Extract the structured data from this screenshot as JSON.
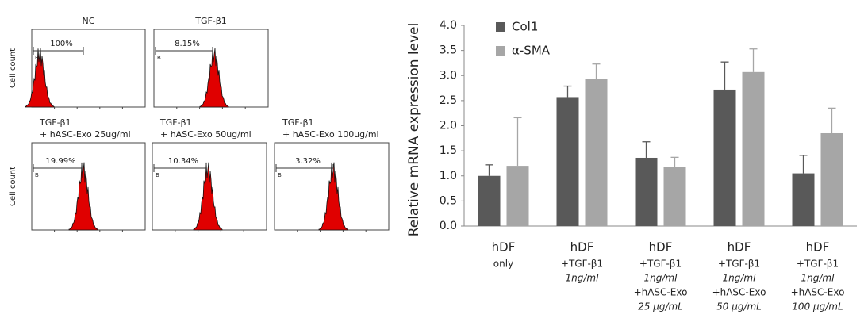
{
  "flow_panels": [
    {
      "title": [
        "NC"
      ],
      "percent": "100%",
      "gate_label": "B",
      "ylabel": "Cell count"
    },
    {
      "title": [
        "TGF-β1"
      ],
      "percent": "8.15%",
      "gate_label": "B"
    },
    {
      "title": [
        "TGF-β1",
        "+ hASC-Exo 25ug/ml"
      ],
      "percent": "19.99%",
      "gate_label": "B",
      "ylabel": "Cell count"
    },
    {
      "title": [
        "TGF-β1",
        "+ hASC-Exo 50ug/ml"
      ],
      "percent": "10.34%",
      "gate_label": "B"
    },
    {
      "title": [
        "TGF-β1",
        "+ hASC-Exo 100ug/ml"
      ],
      "percent": "3.32%",
      "gate_label": "B"
    }
  ],
  "chart_data": {
    "type": "bar",
    "ylabel": "Relative mRNA expression level",
    "categories": [
      [
        "hDF",
        "only"
      ],
      [
        "hDF",
        "+TGF-β1",
        "1ng/ml"
      ],
      [
        "hDF",
        "+TGF-β1",
        "1ng/ml",
        "+hASC-Exo",
        "25 µg/mL"
      ],
      [
        "hDF",
        "+TGF-β1",
        "1ng/ml",
        "+hASC-Exo",
        "50 µg/mL"
      ],
      [
        "hDF",
        "+TGF-β1",
        "1ng/ml",
        "+hASC-Exo",
        "100 µg/mL"
      ]
    ],
    "series": [
      {
        "name": "Col1",
        "color": "#595959",
        "values": [
          1.0,
          2.57,
          1.36,
          2.72,
          1.05
        ],
        "errors": [
          0.22,
          0.22,
          0.32,
          0.55,
          0.36
        ]
      },
      {
        "name": "α-SMA",
        "color": "#a6a6a6",
        "values": [
          1.2,
          2.93,
          1.17,
          3.07,
          1.85
        ],
        "errors": [
          0.96,
          0.3,
          0.2,
          0.46,
          0.5
        ]
      }
    ],
    "ylim": [
      0,
      4
    ],
    "yticks": [
      {
        "value": 0,
        "label": "0.0"
      },
      {
        "value": 0.5,
        "label": "0.5"
      },
      {
        "value": 1,
        "label": "1.0"
      },
      {
        "value": 1.5,
        "label": "1.5"
      },
      {
        "value": 2,
        "label": "2.0"
      },
      {
        "value": 2.5,
        "label": "2.5"
      },
      {
        "value": 3,
        "label": "3.0"
      },
      {
        "value": 3.5,
        "label": "3.5"
      },
      {
        "value": 4,
        "label": "4.0"
      }
    ],
    "legend": "top-left"
  }
}
